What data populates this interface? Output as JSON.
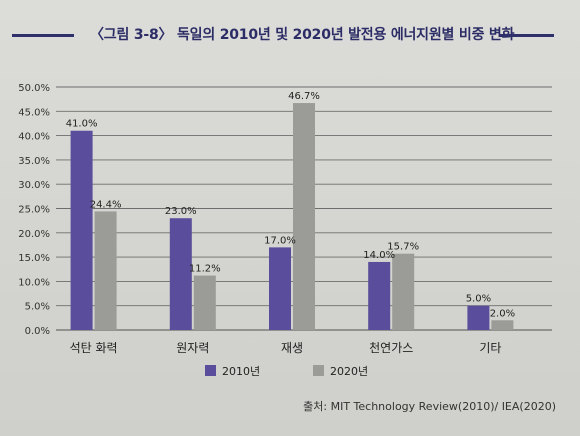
{
  "figure": {
    "title": "〈그림 3-8〉 독일의 2010년 및 2020년 발전용 에너지원별 비중 변화",
    "source": "출처: MIT Technology Review(2010)/ IEA(2020)"
  },
  "colors": {
    "series_2010": "#5a4e9c",
    "series_2020": "#9b9b98",
    "accent_rule": "#2e2f6b",
    "grid": "#6d6d6d"
  },
  "chart_data": {
    "type": "bar",
    "title": "〈그림 3-8〉 독일의 2010년 및 2020년 발전용 에너지원별 비중 변화",
    "categories": [
      "석탄 화력",
      "원자력",
      "재생",
      "천연가스",
      "기타"
    ],
    "series": [
      {
        "name": "2010년",
        "values": [
          41.0,
          23.0,
          17.0,
          14.0,
          5.0
        ],
        "labels": [
          "41.0%",
          "23.0%",
          "17.0%",
          "14.0%",
          "5.0%"
        ]
      },
      {
        "name": "2020년",
        "values": [
          24.4,
          11.2,
          46.7,
          15.7,
          2.0
        ],
        "labels": [
          "24.4%",
          "11.2%",
          "46.7%",
          "15.7%",
          "2.0%"
        ]
      }
    ],
    "ylim": [
      0,
      50
    ],
    "yticks": [
      "0.0%",
      "5.0%",
      "10.0%",
      "15.0%",
      "20.0%",
      "25.0%",
      "30.0%",
      "35.0%",
      "40.0%",
      "45.0%",
      "50.0%"
    ],
    "grid": true,
    "legend_placement": "bottom"
  }
}
